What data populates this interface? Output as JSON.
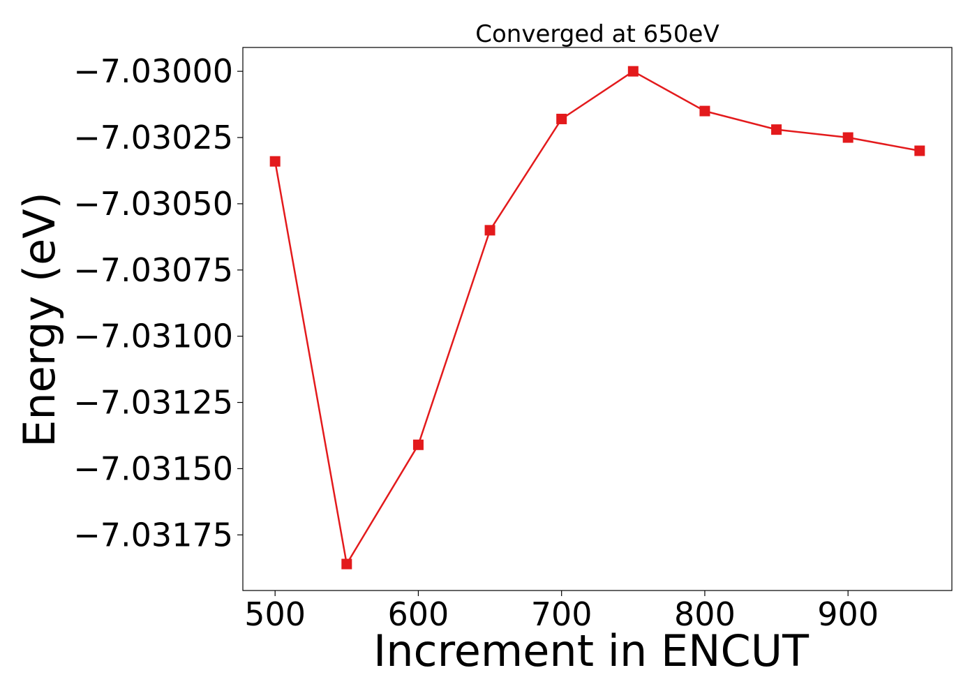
{
  "chart_data": {
    "type": "line",
    "title": "Converged at 650eV",
    "xlabel": "Increment in ENCUT",
    "ylabel": "Energy (eV)",
    "xlim": [
      477.5,
      972.5
    ],
    "ylim": [
      -7.03196,
      -7.02991
    ],
    "x_ticks": [
      500,
      600,
      700,
      800,
      900
    ],
    "x_tick_labels": [
      "500",
      "600",
      "700",
      "800",
      "900"
    ],
    "y_ticks": [
      -7.03,
      -7.03025,
      -7.0305,
      -7.03075,
      -7.031,
      -7.03125,
      -7.0315,
      -7.03175
    ],
    "y_tick_labels": [
      "−7.03000",
      "−7.03025",
      "−7.03050",
      "−7.03075",
      "−7.03100",
      "−7.03125",
      "−7.03150",
      "−7.03175"
    ],
    "grid": false,
    "series": [
      {
        "color": "#e31a1c",
        "marker": "square",
        "x": [
          500,
          550,
          600,
          650,
          700,
          750,
          800,
          850,
          900,
          950
        ],
        "y": [
          -7.03034,
          -7.03186,
          -7.03141,
          -7.0306,
          -7.03018,
          -7.03,
          -7.03015,
          -7.03022,
          -7.03025,
          -7.0303
        ]
      }
    ]
  }
}
